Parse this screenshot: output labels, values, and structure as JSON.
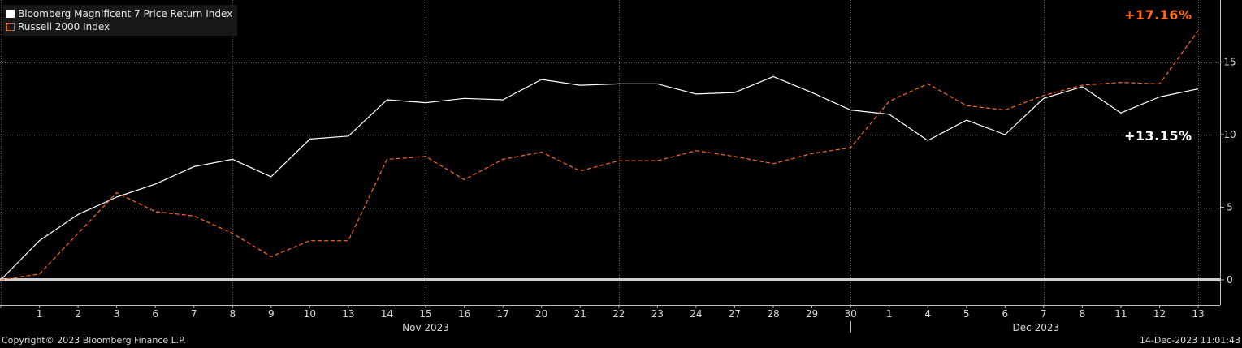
{
  "legend": {
    "series1": "Bloomberg Magnificent 7 Price Return Index",
    "series2": "Russell 2000 Index"
  },
  "callouts": {
    "russell_value": "+17.16%",
    "mag7_value": "+13.15%"
  },
  "footer": {
    "copyright": "Copyright© 2023 Bloomberg Finance L.P.",
    "timestamp": "14-Dec-2023 11:01:43"
  },
  "colors": {
    "background": "#000000",
    "grid": "#6a6a6a",
    "zero_line": "#cfcfcf",
    "series1": "#ffffff",
    "series2": "#ff6a1a"
  },
  "chart_data": {
    "type": "line",
    "categories": [
      "",
      "1",
      "2",
      "3",
      "6",
      "7",
      "8",
      "9",
      "10",
      "13",
      "14",
      "15",
      "16",
      "17",
      "20",
      "21",
      "22",
      "23",
      "24",
      "27",
      "28",
      "29",
      "30",
      "1",
      "4",
      "5",
      "6",
      "7",
      "8",
      "11",
      "12",
      "13"
    ],
    "month_labels": [
      "Nov 2023",
      "Dec 2023"
    ],
    "ylim": [
      -1.8,
      18.5
    ],
    "yticks": [
      0,
      5,
      10,
      15
    ],
    "grid": true,
    "legend_position": "top-left",
    "series": [
      {
        "name": "Bloomberg Magnificent 7 Price Return Index",
        "style": "solid",
        "values": [
          0,
          2.7,
          4.5,
          5.7,
          6.6,
          7.8,
          8.3,
          7.1,
          9.7,
          9.9,
          12.4,
          12.2,
          12.5,
          12.4,
          13.8,
          13.4,
          13.5,
          13.5,
          12.8,
          12.9,
          14.0,
          12.9,
          11.7,
          11.4,
          9.6,
          11.0,
          10.0,
          12.5,
          13.3,
          11.5,
          12.6,
          13.15
        ]
      },
      {
        "name": "Russell 2000 Index",
        "style": "dashed",
        "values": [
          0,
          0.4,
          3.2,
          6.0,
          4.7,
          4.4,
          3.2,
          1.6,
          2.7,
          2.7,
          8.3,
          8.5,
          6.9,
          8.3,
          8.8,
          7.5,
          8.2,
          8.2,
          8.9,
          8.5,
          8.0,
          8.7,
          9.1,
          12.3,
          13.5,
          12.0,
          11.7,
          12.7,
          13.4,
          13.6,
          13.5,
          17.16
        ]
      }
    ]
  }
}
